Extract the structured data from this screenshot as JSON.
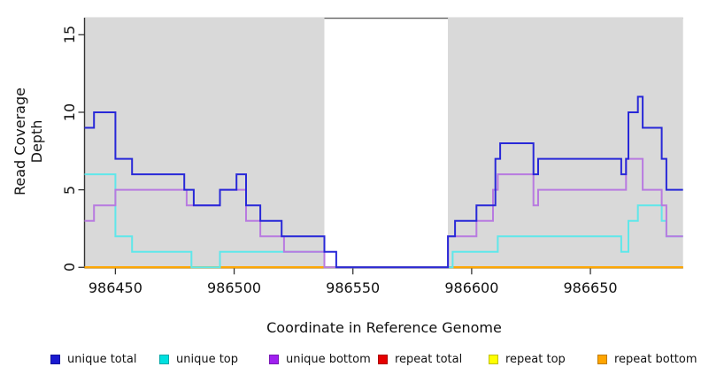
{
  "axes": {
    "x_title": "Coordinate in Reference Genome",
    "y_title": "Read Coverage Depth"
  },
  "legend": {
    "items": [
      {
        "label": "unique total",
        "color": "#1a1ad0"
      },
      {
        "label": "unique top",
        "color": "#00e0e0"
      },
      {
        "label": "unique bottom",
        "color": "#a020f0"
      },
      {
        "label": "repeat total",
        "color": "#e60000"
      },
      {
        "label": "repeat top",
        "color": "#ffff00"
      },
      {
        "label": "repeat bottom",
        "color": "#ffa500"
      }
    ]
  },
  "chart_data": {
    "type": "line",
    "step": true,
    "xlabel": "Coordinate in Reference Genome",
    "ylabel": "Read Coverage Depth",
    "xlim": [
      986437,
      986689
    ],
    "ylim": [
      0,
      16.1
    ],
    "x_ticks": [
      986450,
      986500,
      986550,
      986600,
      986650
    ],
    "y_ticks": [
      0,
      5,
      10,
      15
    ],
    "grid": false,
    "legend_position": "bottom",
    "shaded_regions": [
      {
        "from": 986437,
        "to": 986538,
        "color": "#d9d9d9"
      },
      {
        "from": 986590,
        "to": 986689,
        "color": "#d9d9d9"
      }
    ],
    "gap_top_border_color": "#606060",
    "axis_color": "#333333",
    "series": [
      {
        "name": "repeat total",
        "color": "#e60000",
        "breakpoints": [
          [
            986437,
            0
          ]
        ]
      },
      {
        "name": "repeat top",
        "color": "#ffff00",
        "breakpoints": [
          [
            986437,
            0
          ]
        ]
      },
      {
        "name": "repeat bottom",
        "color": "#ffa500",
        "breakpoints": [
          [
            986437,
            0
          ]
        ]
      },
      {
        "name": "unique top",
        "color": "#5fe7ea",
        "breakpoints": [
          [
            986437,
            6
          ],
          [
            986450,
            2
          ],
          [
            986457,
            1
          ],
          [
            986482,
            0
          ],
          [
            986494,
            1
          ],
          [
            986538,
            0
          ],
          [
            986592,
            1
          ],
          [
            986611,
            2
          ],
          [
            986663,
            1
          ],
          [
            986666,
            3
          ],
          [
            986670,
            4
          ],
          [
            986680,
            3
          ],
          [
            986682,
            2
          ]
        ]
      },
      {
        "name": "unique bottom",
        "color": "#b87ae0",
        "breakpoints": [
          [
            986437,
            3
          ],
          [
            986441,
            4
          ],
          [
            986450,
            5
          ],
          [
            986480,
            4
          ],
          [
            986494,
            5
          ],
          [
            986505,
            3
          ],
          [
            986511,
            2
          ],
          [
            986521,
            1
          ],
          [
            986538,
            0
          ],
          [
            986590,
            2
          ],
          [
            986602,
            3
          ],
          [
            986609,
            5
          ],
          [
            986611,
            6
          ],
          [
            986626,
            4
          ],
          [
            986628,
            5
          ],
          [
            986665,
            7
          ],
          [
            986672,
            5
          ],
          [
            986680,
            4
          ],
          [
            986682,
            2
          ]
        ]
      },
      {
        "name": "unique total",
        "color": "#2828d8",
        "breakpoints": [
          [
            986437,
            9
          ],
          [
            986441,
            10
          ],
          [
            986450,
            7
          ],
          [
            986457,
            6
          ],
          [
            986479,
            5
          ],
          [
            986483,
            4
          ],
          [
            986494,
            5
          ],
          [
            986501,
            6
          ],
          [
            986505,
            4
          ],
          [
            986511,
            3
          ],
          [
            986520,
            2
          ],
          [
            986538,
            1
          ],
          [
            986543,
            0
          ],
          [
            986590,
            2
          ],
          [
            986593,
            3
          ],
          [
            986602,
            4
          ],
          [
            986610,
            7
          ],
          [
            986612,
            8
          ],
          [
            986626,
            6
          ],
          [
            986628,
            7
          ],
          [
            986663,
            6
          ],
          [
            986665,
            7
          ],
          [
            986666,
            10
          ],
          [
            986670,
            11
          ],
          [
            986672,
            9
          ],
          [
            986680,
            7
          ],
          [
            986682,
            5
          ]
        ]
      }
    ]
  }
}
